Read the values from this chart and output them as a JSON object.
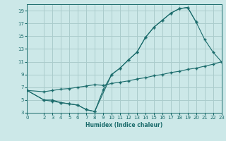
{
  "xlabel": "Humidex (Indice chaleur)",
  "bg_color": "#cce8e8",
  "grid_color": "#aacccc",
  "line_color": "#1a6b6b",
  "line1_x": [
    0,
    2,
    3,
    4,
    5,
    6,
    7,
    8,
    9,
    10,
    11,
    12,
    13,
    14,
    15,
    16,
    17,
    18,
    19,
    20,
    21,
    22,
    23
  ],
  "line1_y": [
    6.5,
    5.0,
    5.0,
    4.6,
    4.4,
    4.2,
    3.5,
    3.2,
    6.6,
    9.0,
    10.0,
    11.3,
    12.5,
    14.8,
    16.4,
    17.5,
    18.6,
    19.3,
    19.5,
    17.2,
    14.5,
    12.5,
    11.0
  ],
  "line2_x": [
    0,
    2,
    3,
    4,
    5,
    6,
    7,
    8,
    10,
    11,
    12,
    13,
    14,
    15,
    16,
    17,
    18,
    19,
    20
  ],
  "line2_y": [
    6.5,
    5.0,
    4.8,
    4.6,
    4.4,
    4.2,
    3.5,
    3.2,
    9.0,
    10.0,
    11.3,
    12.5,
    14.8,
    16.4,
    17.5,
    18.6,
    19.3,
    19.5,
    17.2
  ],
  "line3_x": [
    0,
    2,
    3,
    4,
    5,
    6,
    7,
    8,
    9,
    10,
    11,
    12,
    13,
    14,
    15,
    16,
    17,
    18,
    19,
    20,
    21,
    22,
    23
  ],
  "line3_y": [
    6.5,
    6.3,
    6.5,
    6.7,
    6.8,
    7.0,
    7.2,
    7.4,
    7.3,
    7.6,
    7.8,
    8.0,
    8.3,
    8.5,
    8.8,
    9.0,
    9.3,
    9.5,
    9.8,
    10.0,
    10.3,
    10.6,
    11.0
  ],
  "xlim": [
    0,
    23
  ],
  "ylim": [
    3,
    20
  ],
  "yticks": [
    3,
    5,
    7,
    9,
    11,
    13,
    15,
    17,
    19
  ],
  "xticks": [
    0,
    2,
    3,
    4,
    5,
    6,
    7,
    8,
    9,
    10,
    11,
    12,
    13,
    14,
    15,
    16,
    17,
    18,
    19,
    20,
    21,
    22,
    23
  ]
}
